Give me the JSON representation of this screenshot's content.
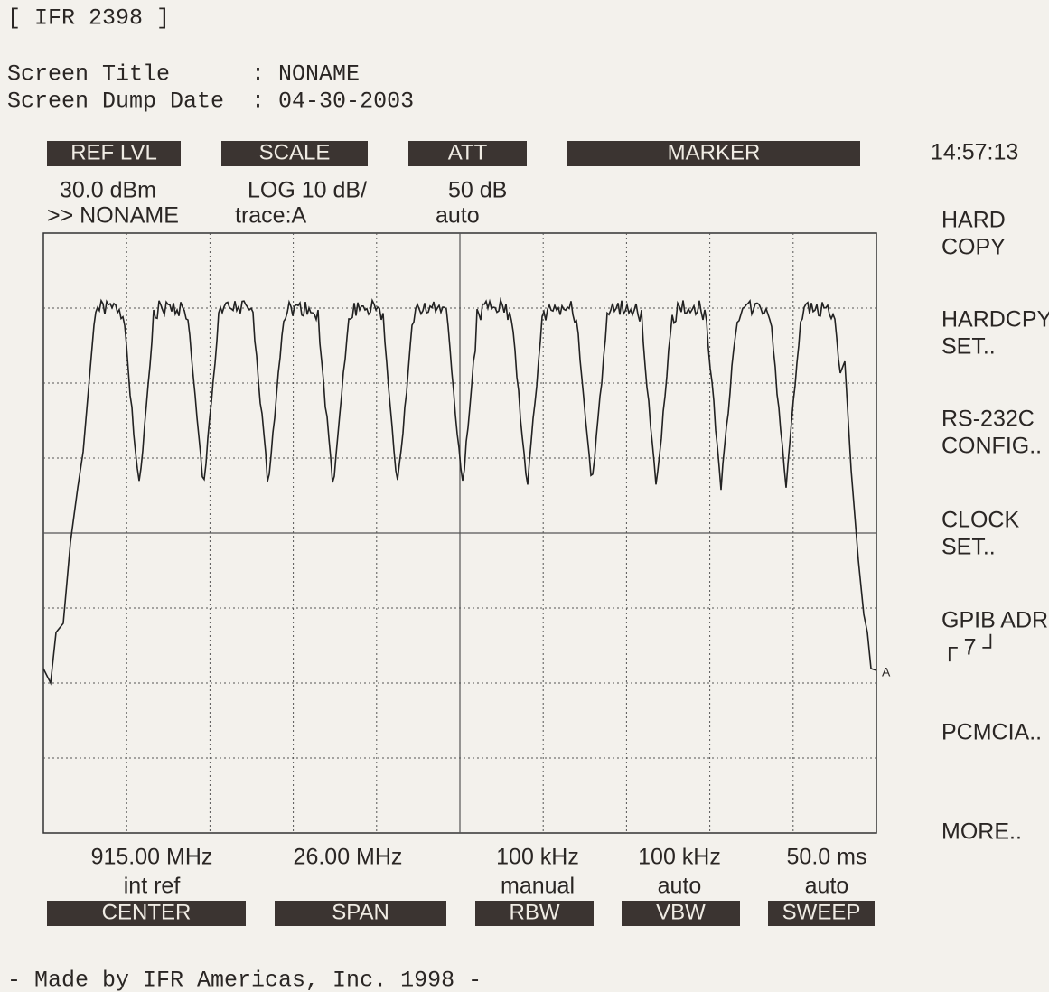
{
  "header": {
    "title": "[ IFR 2398 ]",
    "lines": [
      "Screen Title      : NONAME",
      "Screen Dump Date  : 04-30-2003"
    ]
  },
  "top_keys": [
    "REF LVL",
    "SCALE",
    "ATT",
    "MARKER"
  ],
  "top_readouts": [
    [
      "30.0 dBm",
      ">> NONAME"
    ],
    [
      "LOG 10 dB/",
      "trace:A"
    ],
    [
      "50 dB",
      "auto"
    ]
  ],
  "clock": "14:57:13",
  "side_menu": [
    [
      "HARD",
      "COPY"
    ],
    [
      "HARDCPY",
      "SET.."
    ],
    [
      "RS-232C",
      "CONFIG.."
    ],
    [
      "CLOCK",
      "SET.."
    ],
    [
      "GPIB ADR",
      "┌ 7 ┘"
    ],
    [
      "PCMCIA.."
    ],
    [
      "MORE.."
    ]
  ],
  "trace_marker": "A",
  "bottom_readouts": [
    [
      "915.00 MHz",
      "int ref"
    ],
    [
      "26.00 MHz"
    ],
    [
      "100 kHz",
      "manual"
    ],
    [
      "100 kHz",
      "auto"
    ],
    [
      "50.0 ms",
      "auto"
    ]
  ],
  "bottom_keys": [
    "CENTER",
    "SPAN",
    "RBW",
    "VBW",
    "SWEEP"
  ],
  "footer": "- Made by IFR Americas, Inc. 1998 -"
}
